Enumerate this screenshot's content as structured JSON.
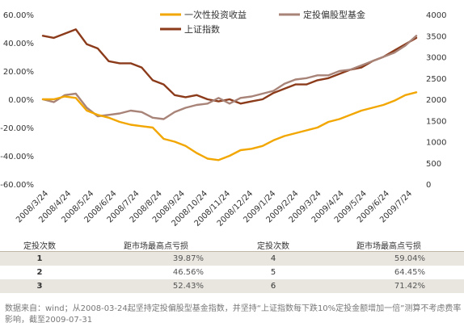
{
  "chart_data": {
    "type": "line",
    "x_labels": [
      "2008/3/24",
      "2008/4/24",
      "2008/5/24",
      "2008/6/24",
      "2008/7/24",
      "2008/8/24",
      "2008/9/24",
      "2008/10/24",
      "2008/11/24",
      "2008/12/24",
      "2009/1/24",
      "2009/2/24",
      "2009/3/24",
      "2009/4/24",
      "2009/5/24",
      "2009/6/24",
      "2009/7/24"
    ],
    "y_left": {
      "ticks": [
        "60.00%",
        "40.00%",
        "20.00%",
        "0.00%",
        "-20.00%",
        "-40.00%",
        "-60.00%"
      ],
      "ylim": [
        -60,
        60
      ]
    },
    "y_right": {
      "ticks": [
        "4000",
        "3500",
        "3000",
        "2500",
        "2000",
        "1500",
        "1000",
        "500",
        "0"
      ],
      "ylim": [
        0,
        4000
      ]
    },
    "series": [
      {
        "name": "一次性投资收益",
        "axis": "left",
        "color": "#f2a600",
        "values": [
          0,
          0,
          2,
          1,
          -8,
          -11,
          -13,
          -16,
          -18,
          -19,
          -20,
          -28,
          -30,
          -33,
          -38,
          -42,
          -43,
          -40,
          -36,
          -35,
          -33,
          -29,
          -26,
          -24,
          -22,
          -20,
          -16,
          -14,
          -11,
          -8,
          -6,
          -4,
          -1,
          3,
          5
        ]
      },
      {
        "name": "定投偏股型基金",
        "axis": "left",
        "color": "#a88378",
        "values": [
          0,
          -2,
          3,
          4,
          -6,
          -12,
          -11,
          -10,
          -8,
          -9,
          -13,
          -14,
          -9,
          -6,
          -4,
          -3,
          1,
          -3,
          1,
          2,
          4,
          6,
          11,
          14,
          15,
          17,
          17,
          20,
          21,
          24,
          27,
          30,
          33,
          38,
          45
        ]
      },
      {
        "name": "上证指数",
        "axis": "right",
        "color": "#8b3a1a",
        "values": [
          3500,
          3450,
          3550,
          3650,
          3300,
          3200,
          2900,
          2850,
          2850,
          2750,
          2450,
          2350,
          2100,
          2050,
          2100,
          2000,
          1950,
          2000,
          1900,
          1950,
          2000,
          2150,
          2250,
          2350,
          2350,
          2450,
          2500,
          2600,
          2700,
          2750,
          2900,
          3000,
          3150,
          3300,
          3450
        ]
      }
    ]
  },
  "legend": [
    {
      "label": "一次性投资收益",
      "color": "#f2a600"
    },
    {
      "label": "定投偏股型基金",
      "color": "#a88378"
    },
    {
      "label": "上证指数",
      "color": "#8b3a1a"
    }
  ],
  "table": {
    "headers": [
      "定投次数",
      "距市场最高点亏损",
      "定投次数",
      "距市场最高点亏损"
    ],
    "rows": [
      [
        "1",
        "39.87%",
        "4",
        "59.04%"
      ],
      [
        "2",
        "46.56%",
        "5",
        "64.45%"
      ],
      [
        "3",
        "52.43%",
        "6",
        "71.42%"
      ]
    ]
  },
  "note": "数据来自：wind；从2008-03-24起坚持定投偏股型基金指数，并坚持“上证指数每下跌10%定投金额增加一倍”测算不考虑费率影响，截至2009-07-31"
}
